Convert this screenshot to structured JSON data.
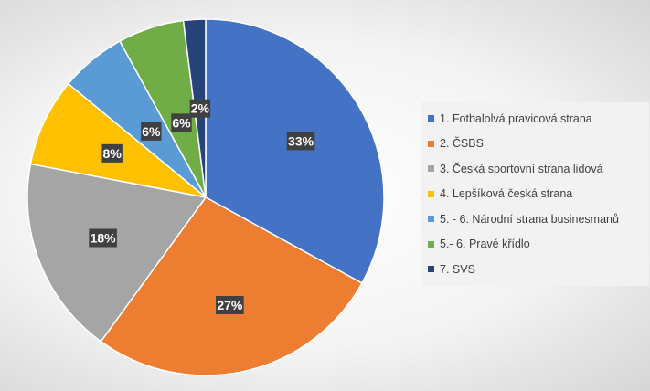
{
  "chart_data": {
    "type": "pie",
    "title": "",
    "categories": [
      "1. Fotbalolvá pravicová strana",
      "2. ČSBS",
      "3. Česká sportovní strana lidová",
      "4. Lepšíková česká strana",
      "5. - 6. Národní strana businesmanů",
      "5.- 6. Pravé křídlo",
      "7. SVS"
    ],
    "values": [
      33,
      27,
      18,
      8,
      6,
      6,
      2
    ],
    "labels": [
      "33%",
      "27%",
      "18%",
      "8%",
      "6%",
      "6%",
      "2%"
    ],
    "colors": [
      "#4472C4",
      "#ED7D31",
      "#A5A5A5",
      "#FFC000",
      "#5B9BD5",
      "#70AD47",
      "#264478"
    ],
    "legend_position": "right"
  }
}
